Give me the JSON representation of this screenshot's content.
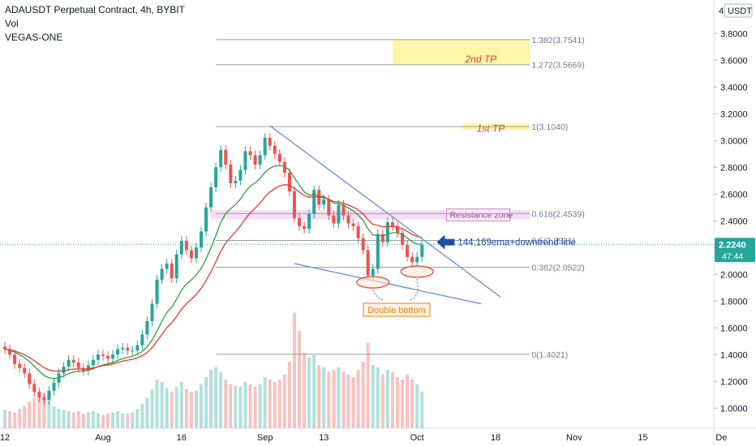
{
  "header": {
    "symbol_line": "ADAUSDT Perpetual Contract, 4h, BYBIT",
    "indicator_vol": "Vol",
    "indicator_vegas": "VEGAS-ONE"
  },
  "axis": {
    "currency_badge": "USDT",
    "currency_prefix": "4",
    "current_price": "2.2240",
    "countdown": "47:44"
  },
  "colors": {
    "up": "#26a69a",
    "down": "#ef5350",
    "ema_fast": "#2e9e3e",
    "ema_slow": "#e53935",
    "trendline": "#6f95d6",
    "fib_line": "#9e9e9e",
    "tp_fill": "#fff59d",
    "resistance_fill": "#e6b8e6",
    "annotation_red": "#e53935",
    "annotation_orange": "#f57c00",
    "arrow_blue": "#1e4fa8"
  },
  "annotations": {
    "tp2": "2nd TP",
    "tp1": "1st TP",
    "resistance": "Resistance zone",
    "double_bottom": "Double bottom",
    "arrow_label": "144,169ema+downtrend line"
  },
  "chart_data": {
    "type": "candlestick",
    "y_ticks": [
      "3.8000",
      "3.6000",
      "3.4000",
      "3.2000",
      "3.0000",
      "2.8000",
      "2.6000",
      "2.4000",
      "2.2000",
      "2.0000",
      "1.8000",
      "1.6000",
      "1.4000",
      "1.2000",
      "1.0000"
    ],
    "y_tick_values": [
      3.8,
      3.6,
      3.4,
      3.2,
      3.0,
      2.8,
      2.6,
      2.4,
      2.2,
      2.0,
      1.8,
      1.6,
      1.4,
      1.2,
      1.0
    ],
    "ylim": [
      0.85,
      4.05
    ],
    "x_ticks": [
      {
        "label": "12",
        "index": 0
      },
      {
        "label": "Aug",
        "index": 20
      },
      {
        "label": "16",
        "index": 36
      },
      {
        "label": "Sep",
        "index": 53
      },
      {
        "label": "13",
        "index": 65
      },
      {
        "label": "Oct",
        "index": 84
      },
      {
        "label": "18",
        "index": 100
      },
      {
        "label": "Nov",
        "index": 116
      },
      {
        "label": "15",
        "index": 130
      },
      {
        "label": "De",
        "index": 146
      }
    ],
    "fib_levels": [
      {
        "label": "1.382(3.7541)",
        "value": 3.7541
      },
      {
        "label": "1.272(3.5669)",
        "value": 3.5669
      },
      {
        "label": "1(3.1040)",
        "value": 3.104
      },
      {
        "label": "0.618(2.4539)",
        "value": 2.4539
      },
      {
        "label": "0.5(2.2531)",
        "value": 2.2531
      },
      {
        "label": "0.382(2.0522)",
        "value": 2.0522
      },
      {
        "label": "0(1.4021)",
        "value": 1.4021
      }
    ],
    "current_price": 2.224,
    "tp_zones": [
      {
        "name": "2nd TP",
        "from": 3.5669,
        "to": 3.7541
      },
      {
        "name": "1st TP",
        "from": 3.08,
        "to": 3.125
      }
    ],
    "resistance_zone": {
      "from": 2.41,
      "to": 2.48
    },
    "downtrend_line": {
      "from": [
        54,
        3.11
      ],
      "to": [
        101,
        1.83
      ]
    },
    "support_line": {
      "from": [
        59,
        2.08
      ],
      "to": [
        97,
        1.78
      ]
    },
    "double_bottom": [
      {
        "index": 75,
        "price": 1.94
      },
      {
        "index": 84,
        "price": 2.02
      }
    ],
    "closes": [
      1.44,
      1.4,
      1.33,
      1.3,
      1.26,
      1.18,
      1.12,
      1.08,
      1.06,
      1.13,
      1.19,
      1.26,
      1.31,
      1.36,
      1.34,
      1.3,
      1.28,
      1.32,
      1.36,
      1.4,
      1.39,
      1.37,
      1.4,
      1.44,
      1.45,
      1.43,
      1.43,
      1.47,
      1.55,
      1.65,
      1.78,
      1.96,
      2.04,
      2.08,
      1.97,
      2.15,
      2.25,
      2.18,
      2.12,
      2.2,
      2.32,
      2.5,
      2.65,
      2.8,
      2.93,
      2.82,
      2.68,
      2.7,
      2.78,
      2.92,
      2.89,
      2.82,
      2.89,
      3.02,
      2.96,
      2.9,
      2.84,
      2.76,
      2.62,
      2.42,
      2.36,
      2.34,
      2.45,
      2.63,
      2.52,
      2.56,
      2.44,
      2.38,
      2.52,
      2.44,
      2.38,
      2.36,
      2.27,
      2.18,
      1.99,
      2.04,
      2.3,
      2.24,
      2.39,
      2.36,
      2.31,
      2.22,
      2.13,
      2.09,
      2.13,
      2.22
    ],
    "volume": [
      0.15,
      0.14,
      0.13,
      0.16,
      0.18,
      0.22,
      0.25,
      0.3,
      0.28,
      0.22,
      0.18,
      0.16,
      0.15,
      0.14,
      0.13,
      0.14,
      0.12,
      0.13,
      0.14,
      0.12,
      0.11,
      0.12,
      0.13,
      0.14,
      0.12,
      0.12,
      0.13,
      0.16,
      0.2,
      0.25,
      0.32,
      0.4,
      0.38,
      0.33,
      0.3,
      0.34,
      0.38,
      0.32,
      0.3,
      0.31,
      0.36,
      0.42,
      0.48,
      0.5,
      0.46,
      0.4,
      0.36,
      0.35,
      0.34,
      0.38,
      0.36,
      0.34,
      0.36,
      0.42,
      0.4,
      0.38,
      0.4,
      0.44,
      0.55,
      0.95,
      0.8,
      0.62,
      0.58,
      0.6,
      0.52,
      0.5,
      0.46,
      0.48,
      0.5,
      0.46,
      0.44,
      0.42,
      0.48,
      0.55,
      0.7,
      0.52,
      0.5,
      0.44,
      0.48,
      0.46,
      0.42,
      0.4,
      0.44,
      0.4,
      0.36,
      0.3
    ]
  }
}
